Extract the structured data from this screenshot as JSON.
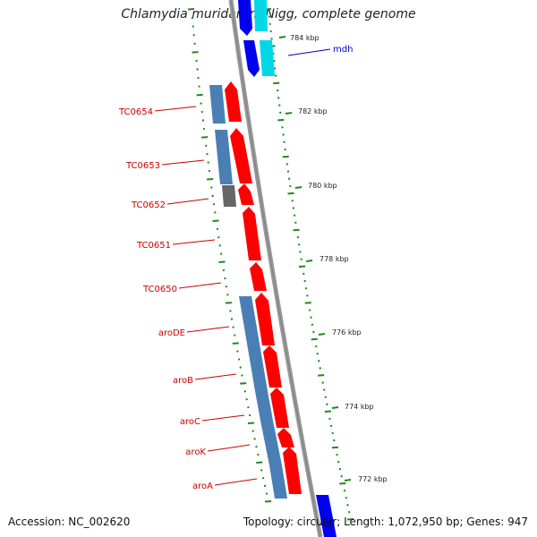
{
  "title": "Chlamydia muridarum Nigg, complete genome",
  "accession": "Accession: NC_002620",
  "topology": "Topology: circular; Length: 1,072,950 bp; Genes: 947",
  "colors": {
    "forward_gene": "#ff0000",
    "reverse_gene": "#4a7fb5",
    "blue_gene": "#0000ee",
    "cyan_gene": "#00d8e8",
    "backbone": "#999999",
    "tick": "#228822",
    "label_red": "#cc0000",
    "label_blue": "#0000cc"
  },
  "kbp_ticks": [
    "784 kbp",
    "782 kbp",
    "780 kbp",
    "778 kbp",
    "776 kbp",
    "774 kbp",
    "772 kbp"
  ],
  "gene_labels": [
    {
      "text": "mdh",
      "style": "blue"
    },
    {
      "text": "TC0654",
      "style": "red"
    },
    {
      "text": "TC0653",
      "style": "red"
    },
    {
      "text": "TC0652",
      "style": "red"
    },
    {
      "text": "TC0651",
      "style": "red"
    },
    {
      "text": "TC0650",
      "style": "red"
    },
    {
      "text": "aroDE",
      "style": "red"
    },
    {
      "text": "aroB",
      "style": "red"
    },
    {
      "text": "aroC",
      "style": "red"
    },
    {
      "text": "aroK",
      "style": "red"
    },
    {
      "text": "aroA",
      "style": "red"
    }
  ]
}
